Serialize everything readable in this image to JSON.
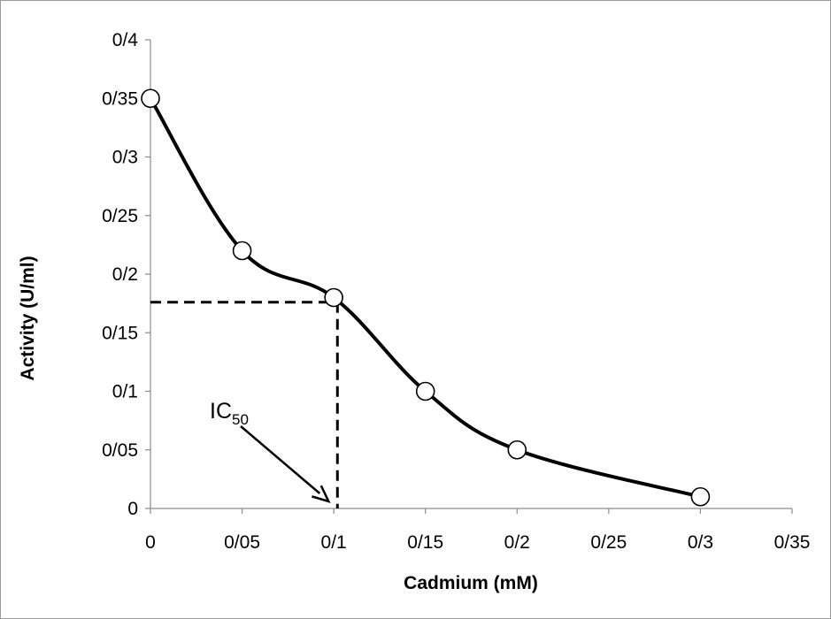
{
  "chart_data": {
    "type": "line",
    "xlabel": "Cadmium (mM)",
    "ylabel": "Activity (U/ml)",
    "x_ticks": [
      0,
      0.05,
      0.1,
      0.15,
      0.2,
      0.25,
      0.3,
      0.35
    ],
    "x_tick_labels": [
      "0",
      "0/05",
      "0/1",
      "0/15",
      "0/2",
      "0/25",
      "0/3",
      "0/35"
    ],
    "y_ticks": [
      0,
      0.05,
      0.1,
      0.15,
      0.2,
      0.25,
      0.3,
      0.35,
      0.4
    ],
    "y_tick_labels": [
      "0",
      "0/05",
      "0/1",
      "0/15",
      "0/2",
      "0/25",
      "0/3",
      "0/35",
      "0/4"
    ],
    "xlim": [
      0,
      0.35
    ],
    "ylim": [
      0,
      0.4
    ],
    "grid": false,
    "series": [
      {
        "x": [
          0,
          0.05,
          0.1,
          0.15,
          0.2,
          0.3
        ],
        "y": [
          0.35,
          0.22,
          0.18,
          0.1,
          0.05,
          0.01
        ],
        "line_color": "#000000",
        "marker": "open-circle"
      }
    ],
    "annotation": {
      "label_main": "IC",
      "label_sub": "50",
      "ic50_x": 0.102,
      "ic50_y": 0.176
    }
  }
}
